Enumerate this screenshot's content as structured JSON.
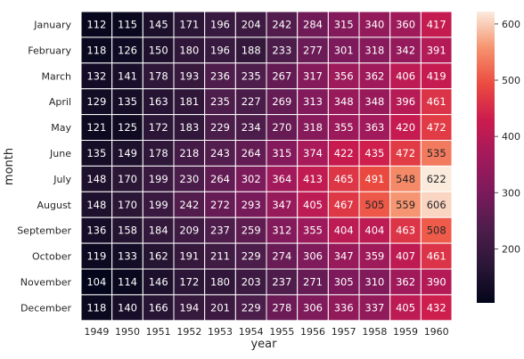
{
  "chart_data": {
    "type": "heatmap",
    "xlabel": "year",
    "ylabel": "month",
    "x_categories": [
      "1949",
      "1950",
      "1951",
      "1952",
      "1953",
      "1954",
      "1955",
      "1956",
      "1957",
      "1958",
      "1959",
      "1960"
    ],
    "y_categories": [
      "January",
      "February",
      "March",
      "April",
      "May",
      "June",
      "July",
      "August",
      "September",
      "October",
      "November",
      "December"
    ],
    "values": [
      [
        112,
        115,
        145,
        171,
        196,
        204,
        242,
        284,
        315,
        340,
        360,
        417
      ],
      [
        118,
        126,
        150,
        180,
        196,
        188,
        233,
        277,
        301,
        318,
        342,
        391
      ],
      [
        132,
        141,
        178,
        193,
        236,
        235,
        267,
        317,
        356,
        362,
        406,
        419
      ],
      [
        129,
        135,
        163,
        181,
        235,
        227,
        269,
        313,
        348,
        348,
        396,
        461
      ],
      [
        121,
        125,
        172,
        183,
        229,
        234,
        270,
        318,
        355,
        363,
        420,
        472
      ],
      [
        135,
        149,
        178,
        218,
        243,
        264,
        315,
        374,
        422,
        435,
        472,
        535
      ],
      [
        148,
        170,
        199,
        230,
        264,
        302,
        364,
        413,
        465,
        491,
        548,
        622
      ],
      [
        148,
        170,
        199,
        242,
        272,
        293,
        347,
        405,
        467,
        505,
        559,
        606
      ],
      [
        136,
        158,
        184,
        209,
        237,
        259,
        312,
        355,
        404,
        404,
        463,
        508
      ],
      [
        119,
        133,
        162,
        191,
        211,
        229,
        274,
        306,
        347,
        359,
        407,
        461
      ],
      [
        104,
        114,
        146,
        172,
        180,
        203,
        237,
        271,
        305,
        310,
        362,
        390
      ],
      [
        118,
        140,
        166,
        194,
        201,
        229,
        278,
        306,
        336,
        337,
        405,
        432
      ]
    ],
    "colorbar": {
      "min": 104,
      "max": 622,
      "ticks": [
        200,
        300,
        400,
        500,
        600
      ]
    },
    "colormap": "rocket",
    "annotated": true,
    "grid": false
  }
}
